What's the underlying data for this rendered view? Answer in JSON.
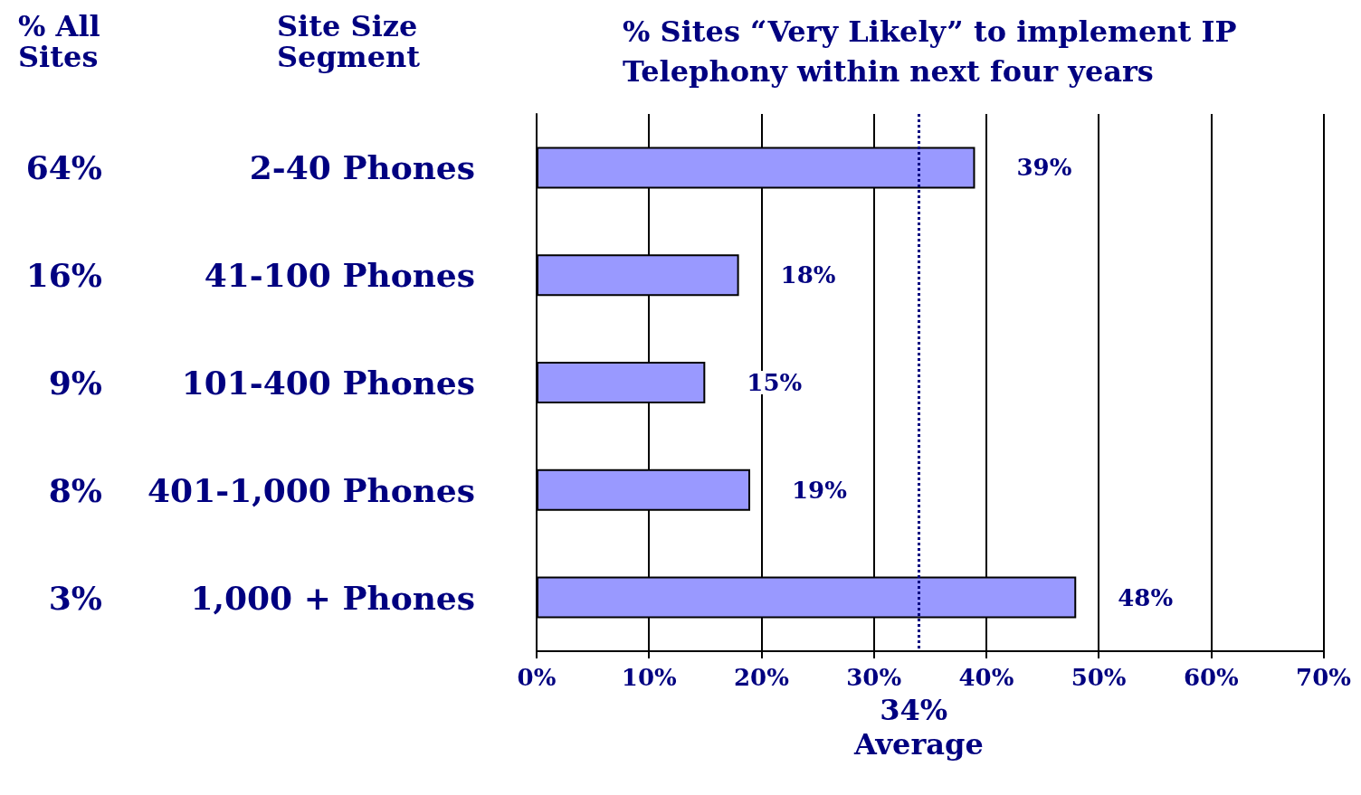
{
  "chart_data": {
    "type": "bar",
    "orientation": "horizontal",
    "title": "% Sites “Very Likely” to implement IP Telephony within next four years",
    "ylabel": "Site Size Segment",
    "categories": [
      "2-40 Phones",
      "41-100 Phones",
      "101-400 Phones",
      "401-1,000 Phones",
      "1,000 + Phones"
    ],
    "values": [
      39,
      18,
      15,
      19,
      48
    ],
    "value_labels": [
      "39%",
      "18%",
      "15%",
      "19%",
      "48%"
    ],
    "color": "#9999ff",
    "xlim": [
      0,
      70
    ],
    "xticks": [
      {
        "value": 0,
        "label": "0%"
      },
      {
        "value": 10,
        "label": "10%"
      },
      {
        "value": 20,
        "label": "20%"
      },
      {
        "value": 30,
        "label": "30%"
      },
      {
        "value": 40,
        "label": "40%"
      },
      {
        "value": 50,
        "label": "50%"
      },
      {
        "value": 60,
        "label": "60%"
      },
      {
        "value": 70,
        "label": "70%"
      }
    ],
    "grid": "x",
    "ref_lines": [
      {
        "axis": "x",
        "value": 34,
        "label": "34% Average",
        "color": "#000080",
        "line_style": "dotted"
      }
    ],
    "annotations": [
      "% All Sites",
      "64%",
      "16%",
      "9%",
      "8%",
      "3%"
    ]
  }
}
